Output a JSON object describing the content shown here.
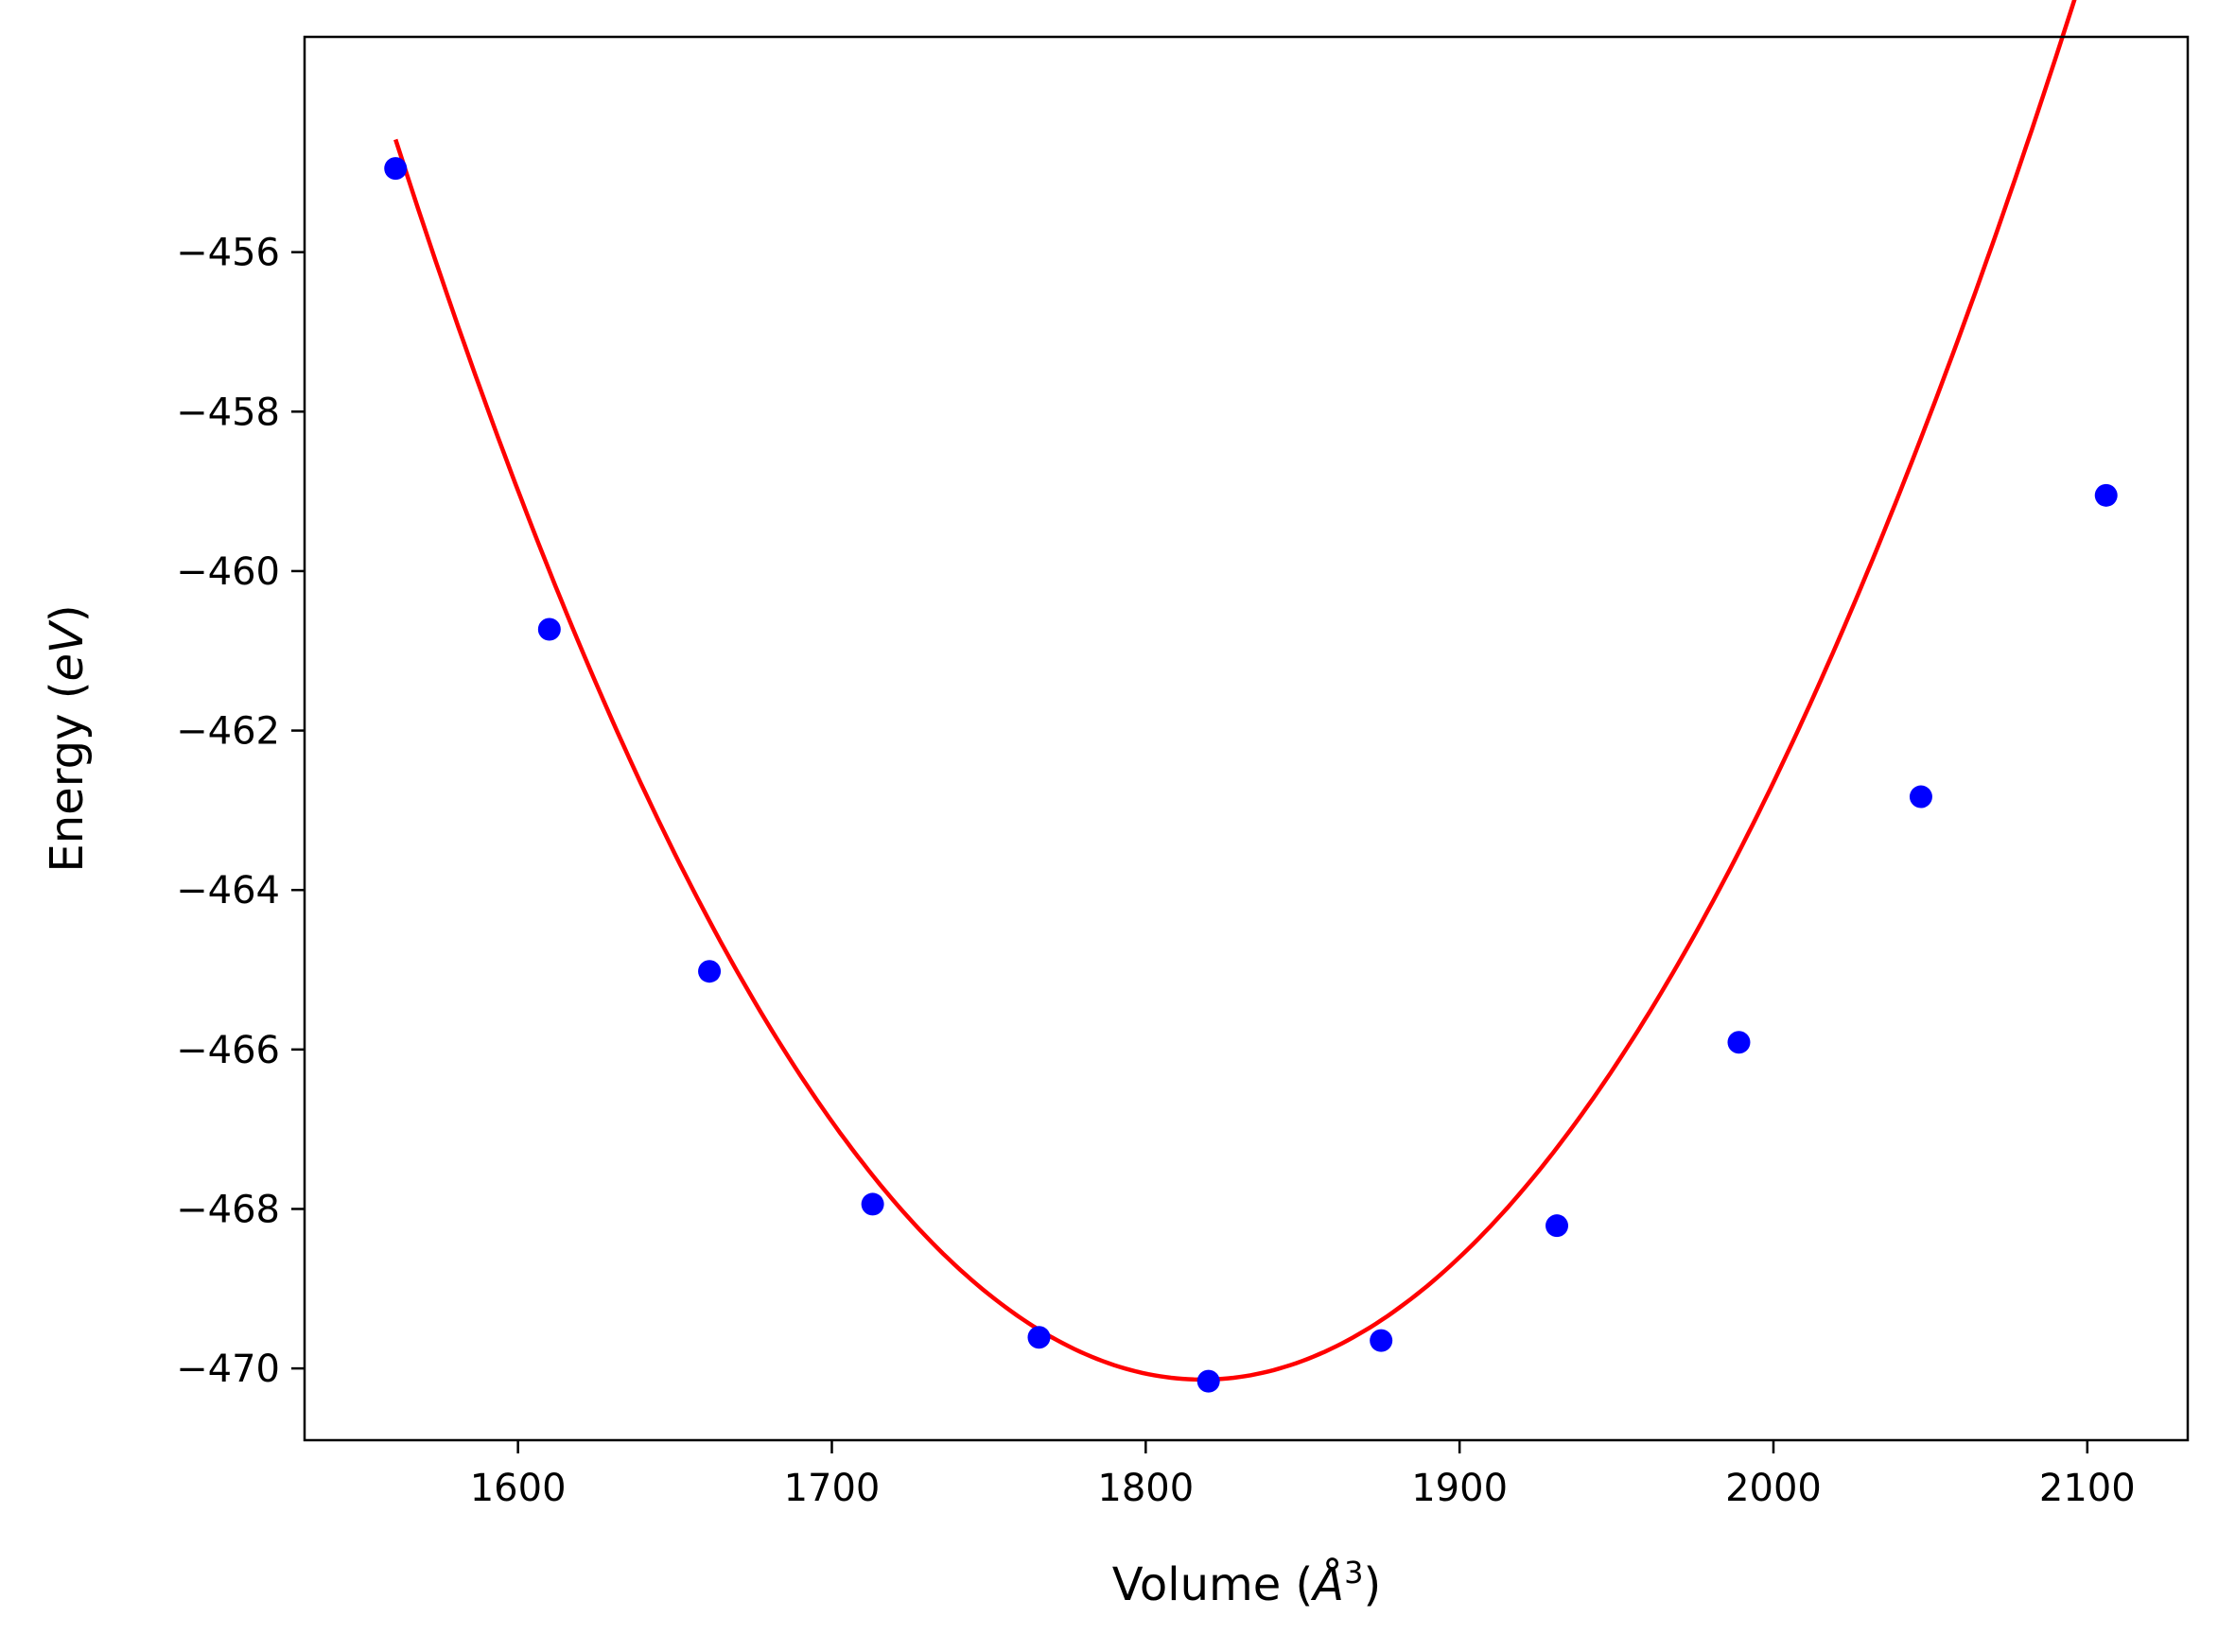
{
  "chart_data": {
    "type": "scatter",
    "title": "",
    "xlabel": {
      "prefix": "Volume (",
      "symbol": "Å",
      "superscript": "3",
      "suffix": ")"
    },
    "ylabel": {
      "prefix": "Energy (",
      "symbol": "eV",
      "suffix": ")"
    },
    "xlim": [
      1532,
      2132
    ],
    "ylim": [
      -470.9,
      -453.3
    ],
    "xticks": [
      1600,
      1700,
      1800,
      1900,
      2000,
      2100
    ],
    "xtick_labels": [
      "1600",
      "1700",
      "1800",
      "1900",
      "2000",
      "2100"
    ],
    "yticks": [
      -456,
      -458,
      -460,
      -462,
      -464,
      -466,
      -468,
      -470
    ],
    "ytick_labels": [
      "−456",
      "−458",
      "−460",
      "−462",
      "−464",
      "−466",
      "−468",
      "−470"
    ],
    "grid": false,
    "series": [
      {
        "kind": "points",
        "color": "#0000ff",
        "x": [
          1561,
          1610,
          1661,
          1713,
          1766,
          1820,
          1875,
          1931,
          1989,
          2047,
          2106
        ],
        "y": [
          -454.95,
          -460.73,
          -465.02,
          -467.94,
          -469.61,
          -470.16,
          -469.65,
          -468.21,
          -465.91,
          -462.83,
          -459.05
        ]
      },
      {
        "kind": "fit",
        "color": "#ff0000",
        "curve": "third-order polynomial fit",
        "coefficients": {
          "a": 0.00023,
          "b": -2.13e-08,
          "x0": 1818,
          "y0": -470.14
        }
      }
    ]
  }
}
